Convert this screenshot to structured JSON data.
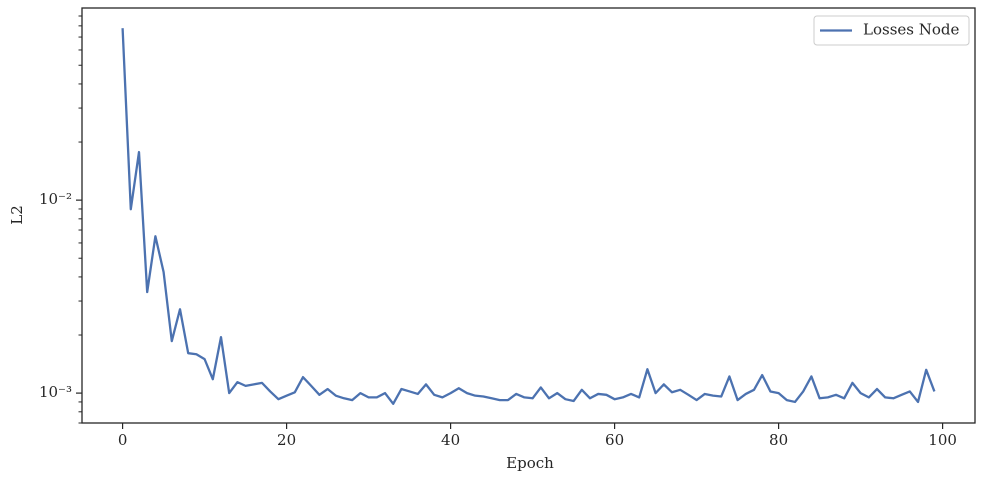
{
  "chart_data": {
    "type": "line",
    "xlabel": "Epoch",
    "ylabel": "L2",
    "x": [
      0,
      1,
      2,
      3,
      4,
      5,
      6,
      7,
      8,
      9,
      10,
      11,
      12,
      13,
      14,
      15,
      16,
      17,
      18,
      19,
      20,
      21,
      22,
      23,
      24,
      25,
      26,
      27,
      28,
      29,
      30,
      31,
      32,
      33,
      34,
      35,
      36,
      37,
      38,
      39,
      40,
      41,
      42,
      43,
      44,
      45,
      46,
      47,
      48,
      49,
      50,
      51,
      52,
      53,
      54,
      55,
      56,
      57,
      58,
      59,
      60,
      61,
      62,
      63,
      64,
      65,
      66,
      67,
      68,
      69,
      70,
      71,
      72,
      73,
      74,
      75,
      76,
      77,
      78,
      79,
      80,
      81,
      82,
      83,
      84,
      85,
      86,
      87,
      88,
      89,
      90,
      91,
      92,
      93,
      94,
      95,
      96,
      97,
      98,
      99
    ],
    "series": [
      {
        "name": "Losses Node",
        "color": "#4c72b0",
        "values": [
          0.0778,
          0.00897,
          0.01774,
          0.00334,
          0.0065,
          0.00424,
          0.00186,
          0.00272,
          0.00161,
          0.00159,
          0.0015,
          0.00118,
          0.00195,
          0.001,
          0.00114,
          0.00109,
          0.00111,
          0.00113,
          0.00102,
          0.00093,
          0.00097,
          0.00101,
          0.00121,
          0.00109,
          0.00098,
          0.00105,
          0.00097,
          0.00094,
          0.00092,
          0.001,
          0.00095,
          0.00095,
          0.001,
          0.00088,
          0.00105,
          0.00102,
          0.00099,
          0.00111,
          0.00098,
          0.00095,
          0.001,
          0.00106,
          0.001,
          0.00097,
          0.00096,
          0.00094,
          0.00092,
          0.00092,
          0.00099,
          0.00095,
          0.00094,
          0.00107,
          0.00094,
          0.001,
          0.00093,
          0.00091,
          0.00104,
          0.00094,
          0.00099,
          0.00098,
          0.00093,
          0.00095,
          0.00099,
          0.00095,
          0.00133,
          0.001,
          0.00111,
          0.00101,
          0.00104,
          0.00098,
          0.00092,
          0.00099,
          0.00097,
          0.00096,
          0.00122,
          0.00092,
          0.00099,
          0.00104,
          0.00124,
          0.00102,
          0.001,
          0.00092,
          0.0009,
          0.00102,
          0.00122,
          0.00094,
          0.00095,
          0.00098,
          0.00094,
          0.00113,
          0.001,
          0.00095,
          0.00105,
          0.00095,
          0.00094,
          0.00098,
          0.00102,
          0.0009,
          0.00132,
          0.00102
        ]
      }
    ],
    "xlim": [
      -4.95,
      103.95
    ],
    "xticks": [
      0,
      20,
      40,
      60,
      80,
      100
    ],
    "ylim": [
      0.0007,
      0.099
    ],
    "ylog": true,
    "yticks": [
      {
        "value": 0.001,
        "label": "10⁻³"
      },
      {
        "value": 0.01,
        "label": "10⁻²"
      }
    ],
    "yminorticks": [
      0.0007,
      0.0008,
      0.0009,
      0.002,
      0.003,
      0.004,
      0.005,
      0.006,
      0.007,
      0.008,
      0.009,
      0.02,
      0.03,
      0.04,
      0.05,
      0.06,
      0.07,
      0.08,
      0.09
    ],
    "legend": "upper right",
    "grid": false
  }
}
